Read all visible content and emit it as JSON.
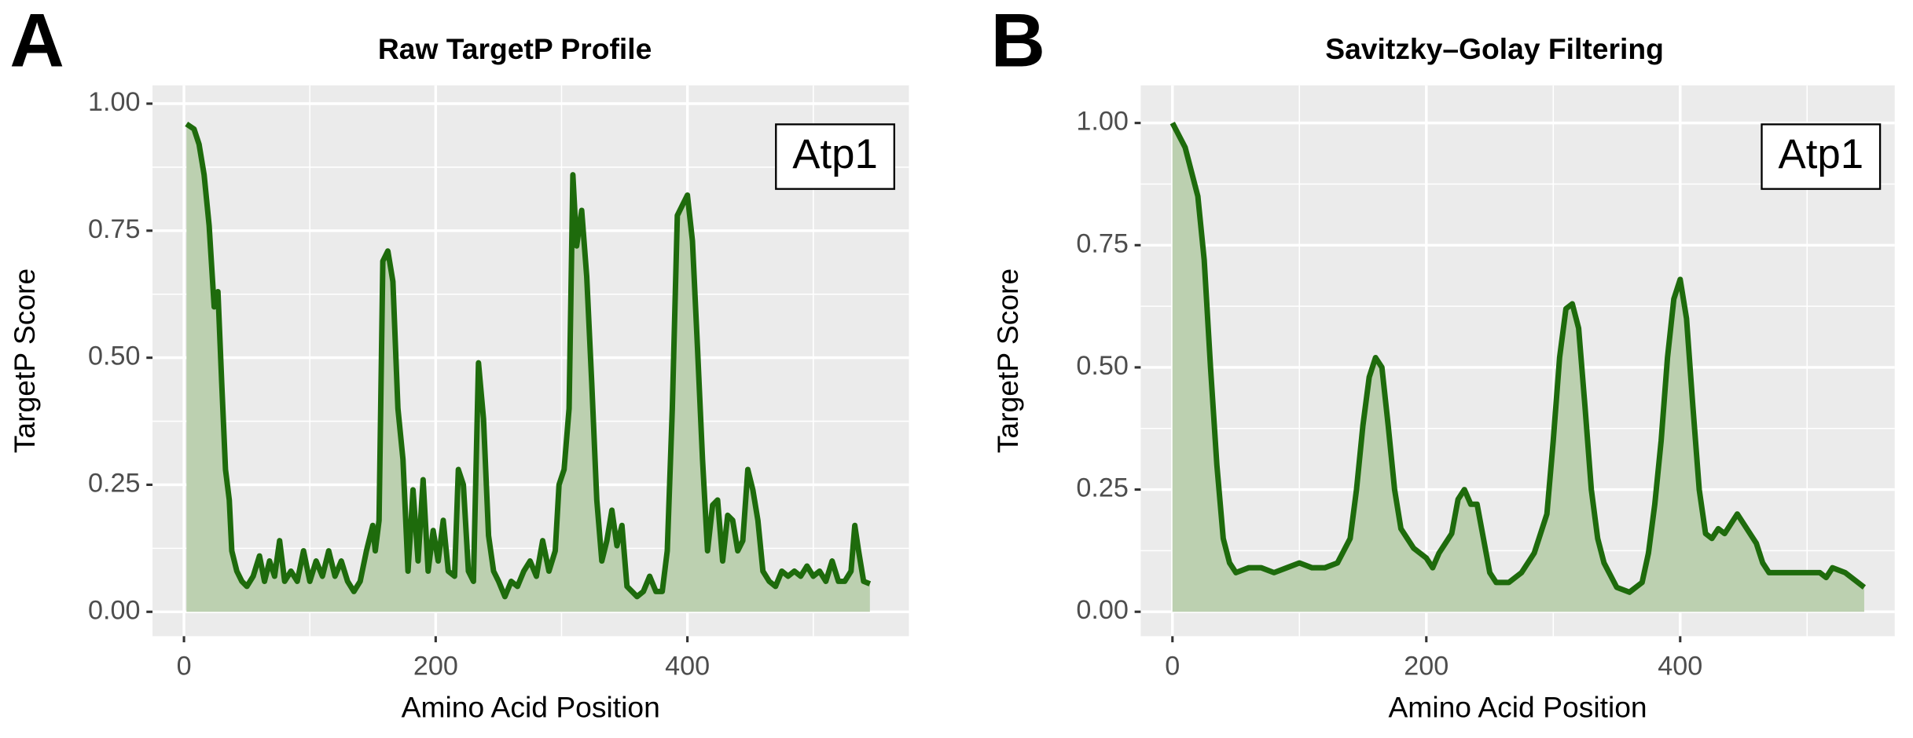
{
  "chart_data": [
    {
      "type": "line",
      "panel_label": "A",
      "title": "Raw TargetP Profile",
      "annotation": "Atp1",
      "x_label": "Amino Acid Position",
      "y_label": "TargetP Score",
      "color": "#1e6b0c",
      "fill": "#bcd0b0",
      "x": [
        2,
        8,
        12,
        16,
        20,
        24,
        27,
        30,
        33,
        36,
        38,
        42,
        46,
        50,
        55,
        60,
        64,
        68,
        72,
        76,
        80,
        85,
        90,
        95,
        100,
        105,
        110,
        115,
        120,
        125,
        130,
        135,
        140,
        145,
        150,
        152,
        155,
        158,
        162,
        166,
        170,
        174,
        178,
        182,
        186,
        190,
        194,
        198,
        202,
        206,
        210,
        215,
        218,
        222,
        226,
        230,
        234,
        238,
        242,
        246,
        250,
        255,
        260,
        265,
        270,
        275,
        280,
        285,
        290,
        295,
        298,
        302,
        306,
        309,
        312,
        316,
        320,
        324,
        328,
        332,
        336,
        340,
        344,
        348,
        352,
        356,
        360,
        365,
        370,
        375,
        380,
        384,
        388,
        392,
        396,
        400,
        404,
        408,
        412,
        416,
        420,
        424,
        428,
        432,
        436,
        440,
        444,
        448,
        452,
        456,
        460,
        465,
        470,
        475,
        480,
        485,
        490,
        495,
        500,
        505,
        510,
        515,
        520,
        525,
        530,
        533,
        536,
        540,
        545
      ],
      "values": [
        0.96,
        0.95,
        0.92,
        0.86,
        0.76,
        0.6,
        0.63,
        0.45,
        0.28,
        0.22,
        0.12,
        0.08,
        0.06,
        0.05,
        0.07,
        0.11,
        0.06,
        0.1,
        0.07,
        0.14,
        0.06,
        0.08,
        0.06,
        0.12,
        0.06,
        0.1,
        0.07,
        0.12,
        0.07,
        0.1,
        0.06,
        0.04,
        0.06,
        0.12,
        0.17,
        0.12,
        0.18,
        0.69,
        0.71,
        0.65,
        0.4,
        0.3,
        0.08,
        0.24,
        0.1,
        0.26,
        0.08,
        0.16,
        0.1,
        0.18,
        0.08,
        0.07,
        0.28,
        0.25,
        0.08,
        0.06,
        0.49,
        0.38,
        0.15,
        0.08,
        0.06,
        0.03,
        0.06,
        0.05,
        0.08,
        0.1,
        0.07,
        0.14,
        0.08,
        0.12,
        0.25,
        0.28,
        0.4,
        0.86,
        0.72,
        0.79,
        0.66,
        0.45,
        0.22,
        0.1,
        0.14,
        0.2,
        0.13,
        0.17,
        0.05,
        0.04,
        0.03,
        0.04,
        0.07,
        0.04,
        0.04,
        0.12,
        0.4,
        0.78,
        0.8,
        0.82,
        0.73,
        0.52,
        0.3,
        0.12,
        0.21,
        0.22,
        0.1,
        0.19,
        0.18,
        0.12,
        0.14,
        0.28,
        0.24,
        0.18,
        0.08,
        0.06,
        0.05,
        0.08,
        0.07,
        0.08,
        0.07,
        0.09,
        0.07,
        0.08,
        0.06,
        0.1,
        0.06,
        0.06,
        0.08,
        0.17,
        0.12,
        0.06,
        0.055
      ],
      "xlim": [
        -25,
        576
      ],
      "ylim": [
        -0.048,
        1.036
      ],
      "xticks": [
        0,
        200,
        400
      ],
      "xminor": [
        100,
        300,
        500
      ],
      "yticks": [
        {
          "value": 0,
          "label": "0.00"
        },
        {
          "value": 0.25,
          "label": "0.25"
        },
        {
          "value": 0.5,
          "label": "0.50"
        },
        {
          "value": 0.75,
          "label": "0.75"
        },
        {
          "value": 1,
          "label": "1.00"
        }
      ],
      "yminor": [
        0.125,
        0.375,
        0.625,
        0.875
      ],
      "grid": true
    },
    {
      "type": "line",
      "panel_label": "B",
      "title": "Savitzky–Golay Filtering",
      "annotation": "Atp1",
      "x_label": "Amino Acid Position",
      "y_label": "TargetP Score",
      "color": "#1e6b0c",
      "fill": "#bcd0b0",
      "x": [
        0,
        10,
        20,
        25,
        30,
        35,
        40,
        45,
        50,
        60,
        70,
        80,
        90,
        100,
        110,
        120,
        130,
        140,
        145,
        150,
        155,
        160,
        165,
        170,
        175,
        180,
        185,
        190,
        195,
        200,
        205,
        210,
        215,
        220,
        225,
        230,
        235,
        240,
        245,
        250,
        255,
        265,
        275,
        285,
        295,
        300,
        305,
        310,
        315,
        320,
        325,
        330,
        335,
        340,
        350,
        360,
        370,
        375,
        380,
        385,
        390,
        395,
        400,
        405,
        410,
        415,
        420,
        425,
        430,
        435,
        440,
        445,
        450,
        460,
        465,
        470,
        480,
        490,
        500,
        510,
        515,
        520,
        530,
        540,
        545
      ],
      "values": [
        1.0,
        0.95,
        0.85,
        0.72,
        0.5,
        0.3,
        0.15,
        0.1,
        0.08,
        0.09,
        0.09,
        0.08,
        0.09,
        0.1,
        0.09,
        0.09,
        0.1,
        0.15,
        0.25,
        0.38,
        0.48,
        0.52,
        0.5,
        0.38,
        0.25,
        0.17,
        0.15,
        0.13,
        0.12,
        0.11,
        0.09,
        0.12,
        0.14,
        0.16,
        0.23,
        0.25,
        0.22,
        0.22,
        0.15,
        0.08,
        0.06,
        0.06,
        0.08,
        0.12,
        0.2,
        0.35,
        0.52,
        0.62,
        0.63,
        0.58,
        0.42,
        0.25,
        0.15,
        0.1,
        0.05,
        0.04,
        0.06,
        0.12,
        0.22,
        0.35,
        0.52,
        0.64,
        0.68,
        0.6,
        0.42,
        0.25,
        0.16,
        0.15,
        0.17,
        0.16,
        0.18,
        0.2,
        0.18,
        0.14,
        0.1,
        0.08,
        0.08,
        0.08,
        0.08,
        0.08,
        0.07,
        0.09,
        0.08,
        0.06,
        0.05
      ],
      "xlim": [
        -25,
        569
      ],
      "ylim": [
        -0.05,
        1.077
      ],
      "xticks": [
        0,
        200,
        400
      ],
      "xminor": [
        100,
        300,
        500
      ],
      "yticks": [
        {
          "value": 0,
          "label": "0.00"
        },
        {
          "value": 0.25,
          "label": "0.25"
        },
        {
          "value": 0.5,
          "label": "0.50"
        },
        {
          "value": 0.75,
          "label": "0.75"
        },
        {
          "value": 1,
          "label": "1.00"
        }
      ],
      "yminor": [
        0.125,
        0.375,
        0.625,
        0.875
      ],
      "grid": true
    }
  ]
}
